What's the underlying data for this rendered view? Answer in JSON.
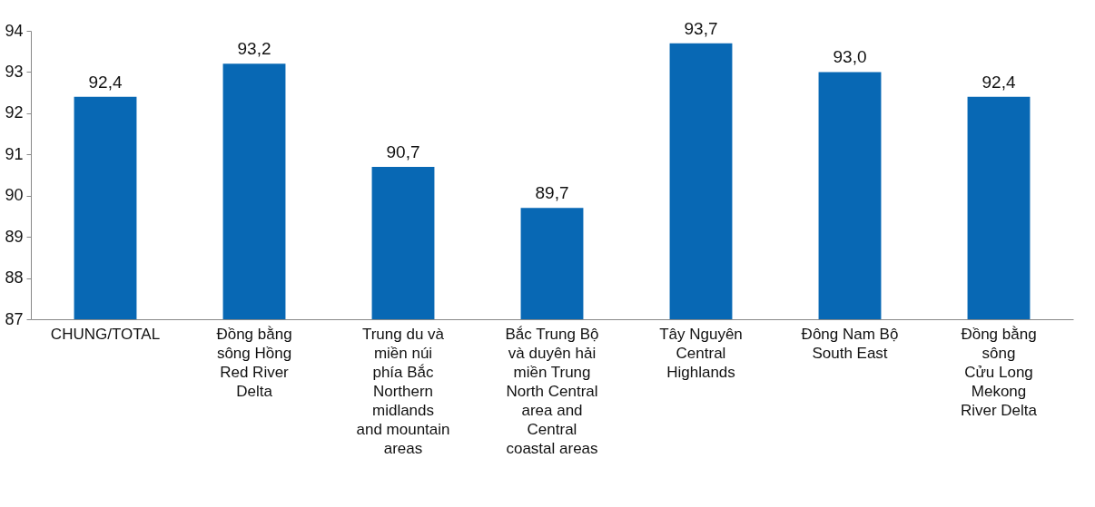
{
  "chart_data": {
    "type": "bar",
    "categories": [
      "CHUNG/TOTAL",
      "Đồng bằng\nsông Hồng\nRed River\nDelta",
      "Trung du và\nmiền núi\nphía Bắc\nNorthern\nmidlands\nand mountain\nareas",
      "Bắc Trung Bộ\nvà duyên hải\nmiền Trung\nNorth Central\narea and\nCentral\ncoastal areas",
      "Tây Nguyên\nCentral\nHighlands",
      "Đông Nam Bộ\nSouth East",
      "Đồng bằng\nsông\nCửu Long\nMekong\nRiver Delta"
    ],
    "values": [
      92.4,
      93.2,
      90.7,
      89.7,
      93.7,
      93.0,
      92.4
    ],
    "value_labels": [
      "92,4",
      "93,2",
      "90,7",
      "89,7",
      "93,7",
      "93,0",
      "92,4"
    ],
    "color": "#0868b4",
    "ylim": [
      87,
      94
    ],
    "yticks": [
      87,
      88,
      89,
      90,
      91,
      92,
      93,
      94
    ],
    "grid": false
  }
}
